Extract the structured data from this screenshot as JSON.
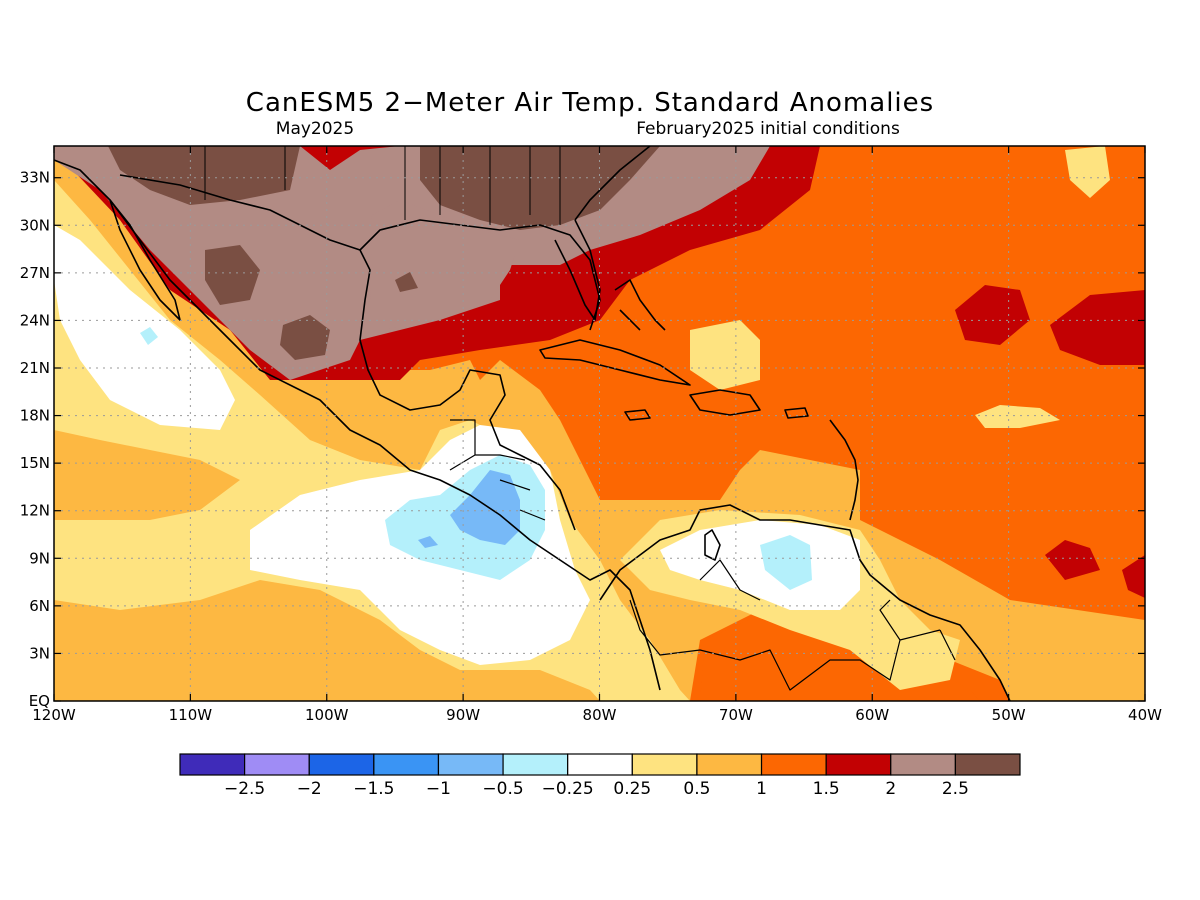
{
  "title": "CanESM5 2−Meter Air Temp. Standard Anomalies",
  "subtitle_left": "May2025",
  "subtitle_right": "February2025 initial conditions",
  "map": {
    "lon_range": [
      -120,
      -40
    ],
    "lat_range": [
      0,
      35
    ],
    "grid": "dotted",
    "lat_ticks": [
      {
        "value": 0,
        "label": "EQ"
      },
      {
        "value": 3,
        "label": "3N"
      },
      {
        "value": 6,
        "label": "6N"
      },
      {
        "value": 9,
        "label": "9N"
      },
      {
        "value": 12,
        "label": "12N"
      },
      {
        "value": 15,
        "label": "15N"
      },
      {
        "value": 18,
        "label": "18N"
      },
      {
        "value": 21,
        "label": "21N"
      },
      {
        "value": 24,
        "label": "24N"
      },
      {
        "value": 27,
        "label": "27N"
      },
      {
        "value": 30,
        "label": "30N"
      },
      {
        "value": 33,
        "label": "33N"
      }
    ],
    "lon_ticks": [
      {
        "value": -120,
        "label": "120W"
      },
      {
        "value": -110,
        "label": "110W"
      },
      {
        "value": -100,
        "label": "100W"
      },
      {
        "value": -90,
        "label": "90W"
      },
      {
        "value": -80,
        "label": "80W"
      },
      {
        "value": -70,
        "label": "70W"
      },
      {
        "value": -60,
        "label": "60W"
      },
      {
        "value": -50,
        "label": "50W"
      },
      {
        "value": -40,
        "label": "40W"
      }
    ]
  },
  "colorbar": {
    "colors": [
      "#3f2bb9",
      "#9f8cf5",
      "#1c65e7",
      "#3a94f4",
      "#77b9f7",
      "#b4f0fb",
      "#ffffff",
      "#fee380",
      "#fdb842",
      "#fc6702",
      "#c20103",
      "#b28b84",
      "#7a4f43"
    ],
    "labels": [
      "−2.5",
      "−2",
      "−1.5",
      "−1",
      "−0.5",
      "−0.25",
      "0.25",
      "0.5",
      "1",
      "1.5",
      "2",
      "2.5"
    ]
  },
  "colors": {
    "c_025_05": "#fee380",
    "c_05_1": "#fdb842",
    "c_1_15": "#fc6702",
    "c_15_2": "#c20103",
    "c_2_25": "#b28b84",
    "c_gt25": "#7a4f43",
    "c_neutral": "#ffffff",
    "c_m025": "#b4f0fb",
    "c_m05": "#77b9f7"
  }
}
